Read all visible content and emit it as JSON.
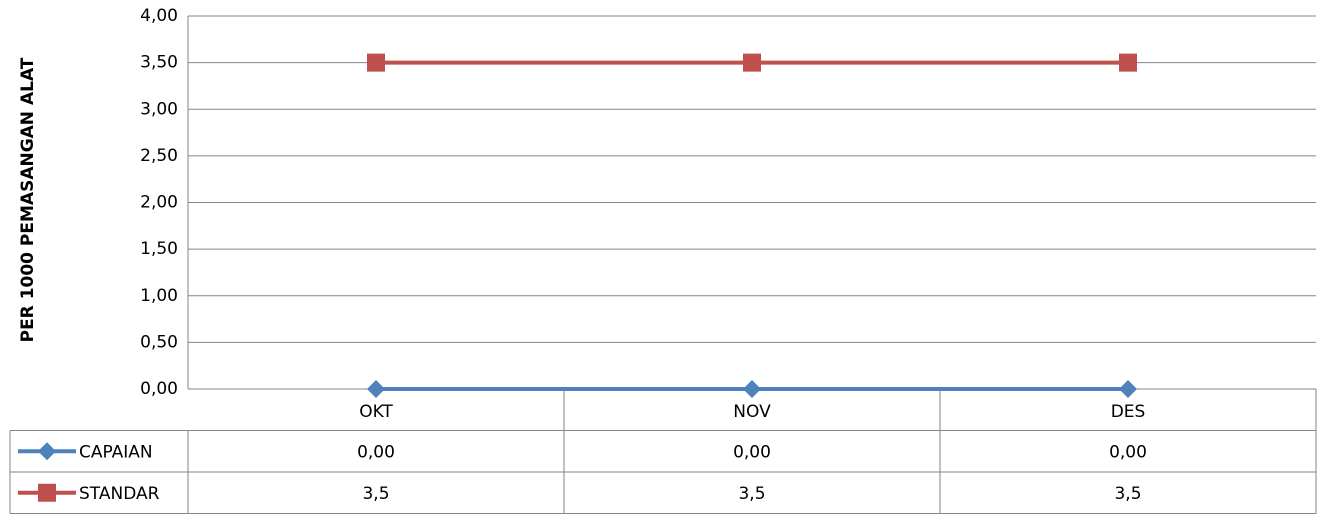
{
  "chart_data": {
    "type": "line",
    "y_axis_label": "PER 1000 PEMASANGAN ALAT",
    "categories": [
      "OKT",
      "NOV",
      "DES"
    ],
    "series": [
      {
        "name": "CAPAIAN",
        "color": "#4f81bd",
        "marker": "diamond",
        "values": [
          0,
          0,
          0
        ],
        "value_labels": [
          "0,00",
          "0,00",
          "0,00"
        ]
      },
      {
        "name": "STANDAR",
        "color": "#c0504d",
        "marker": "square",
        "values": [
          3.5,
          3.5,
          3.5
        ],
        "value_labels": [
          "3,5",
          "3,5",
          "3,5"
        ]
      }
    ],
    "ylim": [
      0,
      4
    ],
    "yticks": [
      {
        "value": 0,
        "label": "0,00"
      },
      {
        "value": 0.5,
        "label": "0,50"
      },
      {
        "value": 1,
        "label": "1,00"
      },
      {
        "value": 1.5,
        "label": "1,50"
      },
      {
        "value": 2,
        "label": "2,00"
      },
      {
        "value": 2.5,
        "label": "2,50"
      },
      {
        "value": 3,
        "label": "3,00"
      },
      {
        "value": 3.5,
        "label": "3,50"
      },
      {
        "value": 4,
        "label": "4,00"
      }
    ],
    "grid": true,
    "data_table": true
  }
}
